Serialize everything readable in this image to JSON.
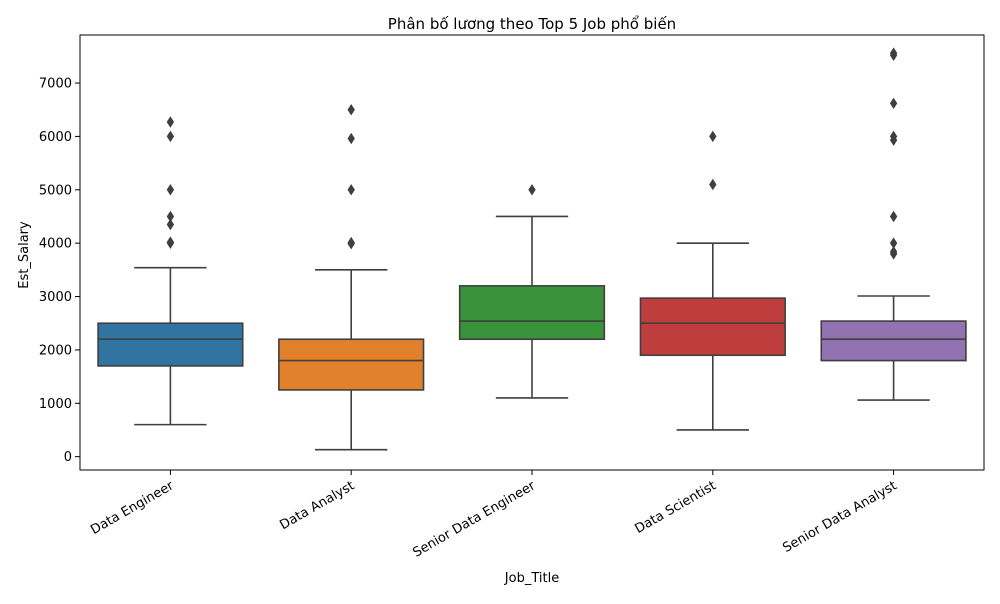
{
  "chart_data": {
    "type": "box",
    "title": "Phân bố lương theo Top 5 Job phổ biến",
    "xlabel": "Job_Title",
    "ylabel": "Est_Salary",
    "ylim": [
      -250,
      7900
    ],
    "yticks": [
      0,
      1000,
      2000,
      3000,
      4000,
      5000,
      6000,
      7000
    ],
    "ytick_labels": [
      "0",
      "1000",
      "2000",
      "3000",
      "4000",
      "5000",
      "6000",
      "7000"
    ],
    "grid": false,
    "categories": [
      "Data Engineer",
      "Data Analyst",
      "Senior Data Engineer",
      "Data Scientist",
      "Senior Data Analyst"
    ],
    "series": [
      {
        "category": "Data Engineer",
        "color": "#3274a1",
        "whisker_low": 600,
        "q1": 1700,
        "median": 2200,
        "q3": 2500,
        "whisker_high": 3540,
        "outliers": [
          4000,
          4020,
          4350,
          4500,
          5000,
          6000,
          6270
        ]
      },
      {
        "category": "Data Analyst",
        "color": "#e1812c",
        "whisker_low": 130,
        "q1": 1250,
        "median": 1800,
        "q3": 2200,
        "whisker_high": 3500,
        "outliers": [
          3990,
          4010,
          5000,
          5960,
          6500
        ]
      },
      {
        "category": "Senior Data Engineer",
        "color": "#3a923a",
        "whisker_low": 1100,
        "q1": 2200,
        "median": 2540,
        "q3": 3200,
        "whisker_high": 4500,
        "outliers": [
          5000
        ]
      },
      {
        "category": "Data Scientist",
        "color": "#c03d3e",
        "whisker_low": 500,
        "q1": 1900,
        "median": 2500,
        "q3": 2970,
        "whisker_high": 4000,
        "outliers": [
          5100,
          6000
        ]
      },
      {
        "category": "Senior Data Analyst",
        "color": "#9372b2",
        "whisker_low": 1060,
        "q1": 1800,
        "median": 2200,
        "q3": 2540,
        "whisker_high": 3010,
        "outliers": [
          3800,
          3840,
          4000,
          4500,
          5930,
          6000,
          6620,
          7520,
          7560
        ]
      }
    ]
  }
}
